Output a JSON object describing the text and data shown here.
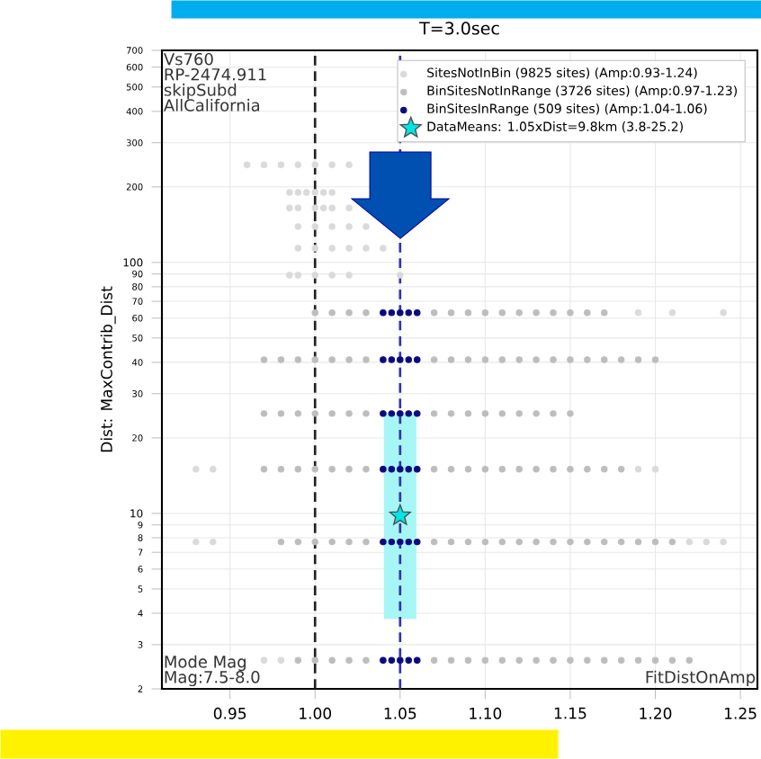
{
  "chart_data": {
    "type": "scatter",
    "title": "T=3.0sec",
    "ylabel": "Dist: MaxContrib_Dist",
    "xlim": [
      0.91,
      1.26
    ],
    "ylim": [
      2,
      700
    ],
    "log": "y",
    "grid": true,
    "legend": "top right",
    "marker": "circle",
    "xticks": [
      0.95,
      {
        "value": 1.0,
        "label": "1.00"
      },
      1.05,
      {
        "value": 1.1,
        "label": "1.10"
      },
      1.15,
      {
        "value": 1.2,
        "label": "1.20"
      },
      1.25
    ],
    "yticks": [
      2,
      3,
      4,
      5,
      6,
      7,
      8,
      9,
      10,
      20,
      30,
      40,
      50,
      60,
      70,
      80,
      90,
      100,
      200,
      300,
      400,
      500,
      600,
      700
    ],
    "annotations": [
      "Vs760",
      "RP-2474.911",
      "skipSubd",
      "AllCalifornia",
      "Mode Mag",
      "Mag:7.5-8.0",
      "FitDistOnAmp"
    ],
    "ref_lines": [
      {
        "axis": "x",
        "value": 1.0,
        "color": "#222222",
        "line_style": "dashed"
      },
      {
        "axis": "x",
        "value": 1.05,
        "color": "#3333aa",
        "line_style": "dashed"
      }
    ],
    "series": [
      {
        "name": "SitesNotInBin (9825 sites) (Amp:0.93-1.24)",
        "color": "#dadada",
        "x": [
          0.96,
          0.97,
          0.98,
          0.99,
          1.0,
          1.01,
          1.02,
          0.985,
          0.99,
          0.995,
          1.0,
          1.005,
          1.01,
          0.985,
          0.99,
          1.0,
          1.005,
          1.01,
          1.02,
          0.99,
          1.0,
          1.01,
          1.02,
          1.03,
          0.99,
          1.0,
          1.01,
          1.02,
          1.03,
          1.04,
          0.985,
          0.99,
          1.0,
          1.01,
          1.02,
          1.05,
          1.19,
          1.21,
          1.24,
          0.93,
          0.94,
          1.19,
          1.2,
          0.93,
          0.94,
          1.22,
          1.23,
          1.24,
          0.97,
          0.98
        ],
        "values": [
          245,
          245,
          245,
          245,
          245,
          245,
          245,
          190,
          190,
          190,
          190,
          190,
          190,
          165,
          165,
          165,
          165,
          165,
          165,
          139,
          139,
          139,
          139,
          139,
          114,
          114,
          114,
          114,
          114,
          114,
          89,
          89,
          89,
          89,
          89,
          89,
          63,
          63,
          63,
          15,
          15,
          15,
          15,
          7.7,
          7.7,
          7.7,
          7.7,
          7.7,
          2.6,
          2.6
        ]
      },
      {
        "name": "BinSitesNotInRange (3726 sites) (Amp:0.97-1.23)",
        "color": "#bdbdbd",
        "x": [
          1.0,
          1.01,
          1.02,
          1.03,
          1.04,
          1.05,
          1.06,
          1.07,
          1.08,
          1.09,
          1.1,
          1.11,
          1.12,
          1.13,
          1.14,
          1.15,
          1.16,
          1.17,
          0.97,
          0.98,
          0.99,
          1.0,
          1.01,
          1.02,
          1.03,
          1.04,
          1.05,
          1.06,
          1.07,
          1.08,
          1.09,
          1.1,
          1.11,
          1.12,
          1.13,
          1.14,
          1.15,
          1.16,
          1.17,
          1.18,
          1.19,
          1.2,
          0.97,
          0.98,
          0.99,
          1.0,
          1.01,
          1.02,
          1.03,
          1.04,
          1.05,
          1.06,
          1.07,
          1.08,
          1.09,
          1.1,
          1.11,
          1.12,
          1.13,
          1.14,
          1.15,
          0.97,
          0.98,
          0.99,
          1.0,
          1.01,
          1.02,
          1.03,
          1.04,
          1.05,
          1.06,
          1.07,
          1.08,
          1.09,
          1.1,
          1.11,
          1.12,
          1.13,
          1.14,
          1.15,
          1.16,
          1.17,
          1.18,
          0.98,
          0.99,
          1.0,
          1.01,
          1.02,
          1.03,
          1.04,
          1.05,
          1.06,
          1.07,
          1.08,
          1.09,
          1.1,
          1.11,
          1.12,
          1.13,
          1.14,
          1.15,
          1.16,
          1.17,
          1.18,
          1.19,
          1.2,
          1.21,
          0.99,
          1.0,
          1.01,
          1.02,
          1.03,
          1.04,
          1.05,
          1.06,
          1.07,
          1.08,
          1.09,
          1.1,
          1.11,
          1.12,
          1.13,
          1.14,
          1.15,
          1.16,
          1.17,
          1.18,
          1.19,
          1.2,
          1.21,
          1.22
        ],
        "values": [
          63,
          63,
          63,
          63,
          63,
          63,
          63,
          63,
          63,
          63,
          63,
          63,
          63,
          63,
          63,
          63,
          63,
          63,
          41,
          41,
          41,
          41,
          41,
          41,
          41,
          41,
          41,
          41,
          41,
          41,
          41,
          41,
          41,
          41,
          41,
          41,
          41,
          41,
          41,
          41,
          41,
          41,
          25,
          25,
          25,
          25,
          25,
          25,
          25,
          25,
          25,
          25,
          25,
          25,
          25,
          25,
          25,
          25,
          25,
          25,
          25,
          15,
          15,
          15,
          15,
          15,
          15,
          15,
          15,
          15,
          15,
          15,
          15,
          15,
          15,
          15,
          15,
          15,
          15,
          15,
          15,
          15,
          15,
          7.7,
          7.7,
          7.7,
          7.7,
          7.7,
          7.7,
          7.7,
          7.7,
          7.7,
          7.7,
          7.7,
          7.7,
          7.7,
          7.7,
          7.7,
          7.7,
          7.7,
          7.7,
          7.7,
          7.7,
          7.7,
          7.7,
          7.7,
          7.7,
          2.6,
          2.6,
          2.6,
          2.6,
          2.6,
          2.6,
          2.6,
          2.6,
          2.6,
          2.6,
          2.6,
          2.6,
          2.6,
          2.6,
          2.6,
          2.6,
          2.6,
          2.6,
          2.6,
          2.6,
          2.6,
          2.6,
          2.6,
          2.6
        ]
      },
      {
        "name": "BinSitesInRange (509 sites) (Amp:1.04-1.06)",
        "color": "#0a0a80",
        "x": [
          1.04,
          1.045,
          1.05,
          1.055,
          1.06,
          1.04,
          1.045,
          1.05,
          1.055,
          1.06,
          1.04,
          1.045,
          1.05,
          1.055,
          1.06,
          1.04,
          1.045,
          1.05,
          1.055,
          1.06,
          1.04,
          1.045,
          1.05,
          1.055,
          1.06,
          1.04,
          1.045,
          1.05,
          1.055,
          1.06
        ],
        "values": [
          63,
          63,
          63,
          63,
          63,
          41,
          41,
          41,
          41,
          41,
          25,
          25,
          25,
          25,
          25,
          15,
          15,
          15,
          15,
          15,
          7.7,
          7.7,
          7.7,
          7.7,
          7.7,
          2.6,
          2.6,
          2.6,
          2.6,
          2.6
        ]
      },
      {
        "name": "DataMeans: 1.05xDist=9.8km (3.8-25.2)",
        "color": "#00e5e5",
        "marker": "star",
        "x": [
          1.05
        ],
        "values": [
          9.8
        ],
        "errors": [
          [
            3.8,
            25.2
          ]
        ]
      }
    ]
  }
}
